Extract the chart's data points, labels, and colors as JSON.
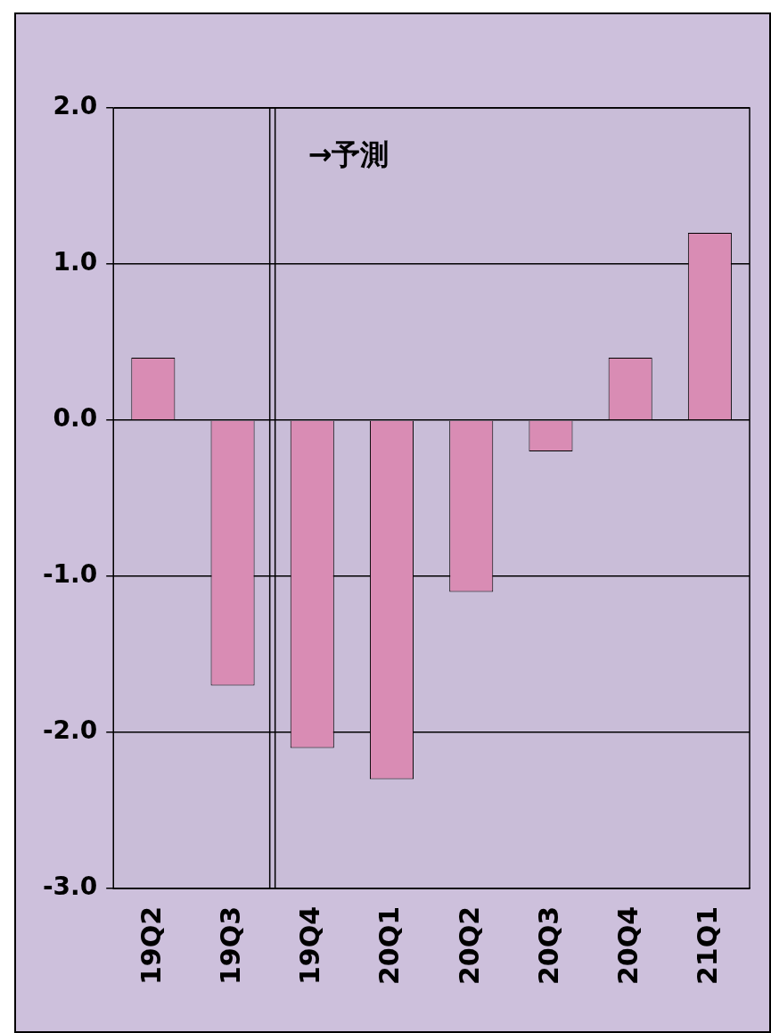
{
  "chart_data": {
    "type": "bar",
    "categories": [
      "19Q2",
      "19Q3",
      "19Q4",
      "20Q1",
      "20Q2",
      "20Q3",
      "20Q4",
      "21Q1"
    ],
    "values": [
      0.4,
      -1.7,
      -2.1,
      -2.3,
      -1.1,
      -0.2,
      0.4,
      1.2
    ],
    "color": "#d98cb4",
    "ylim": [
      -3,
      2
    ],
    "yticks": [
      {
        "value": -3,
        "label": "-3.0"
      },
      {
        "value": -2,
        "label": "-2.0"
      },
      {
        "value": -1,
        "label": "-1.0"
      },
      {
        "value": 0,
        "label": "0.0"
      },
      {
        "value": 1,
        "label": "1.0"
      },
      {
        "value": 2,
        "label": "2.0"
      }
    ],
    "grid": "y",
    "legend": false,
    "annotations": [
      "→予測"
    ]
  }
}
